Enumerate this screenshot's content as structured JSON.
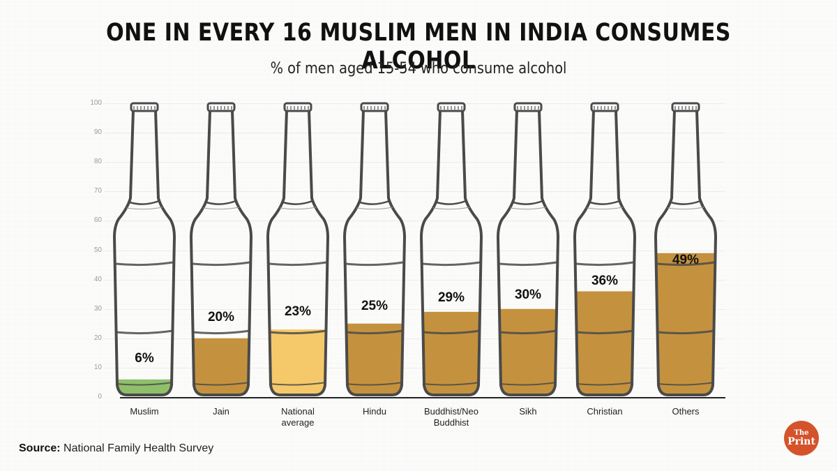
{
  "title": "ONE IN EVERY 16 MUSLIM MEN IN INDIA CONSUMES ALCOHOL",
  "subtitle": "% of men aged 15-54 who consume alcohol",
  "source_label": "Source:",
  "source_text": "National Family Health Survey",
  "logo": {
    "line1": "The",
    "line2": "Print",
    "color": "#d4532b"
  },
  "colors": {
    "muslim_fill": "#8fbf6a",
    "national_avg_fill": "#f5c96a",
    "default_fill": "#c4923e",
    "bottle_outline": "#4a4a4a"
  },
  "yticks": [
    "0",
    "10",
    "20",
    "30",
    "40",
    "50",
    "60",
    "70",
    "80",
    "90",
    "100"
  ],
  "bars": [
    {
      "label": "Muslim",
      "value_label": "6%"
    },
    {
      "label": "Jain",
      "value_label": "20%"
    },
    {
      "label": "National average",
      "value_label": "23%"
    },
    {
      "label": "Hindu",
      "value_label": "25%"
    },
    {
      "label": "Buddhist/Neo Buddhist",
      "value_label": "29%"
    },
    {
      "label": "Sikh",
      "value_label": "30%"
    },
    {
      "label": "Christian",
      "value_label": "36%"
    },
    {
      "label": "Others",
      "value_label": "49%"
    }
  ],
  "chart_data": {
    "type": "bar",
    "title": "ONE IN EVERY 16 MUSLIM MEN IN INDIA CONSUMES ALCOHOL",
    "subtitle": "% of men aged 15-54 who consume alcohol",
    "categories": [
      "Muslim",
      "Jain",
      "National average",
      "Hindu",
      "Buddhist/Neo Buddhist",
      "Sikh",
      "Christian",
      "Others"
    ],
    "values": [
      6,
      20,
      23,
      25,
      29,
      30,
      36,
      49
    ],
    "data_labels": [
      "6%",
      "20%",
      "23%",
      "25%",
      "29%",
      "30%",
      "36%",
      "49%"
    ],
    "xlabel": "",
    "ylabel": "",
    "ylim": [
      0,
      100
    ],
    "yticks": [
      0,
      10,
      20,
      30,
      40,
      50,
      60,
      70,
      80,
      90,
      100
    ],
    "grid": true,
    "legend": null,
    "style": "pictogram bars drawn as beer bottles filled to value level",
    "source": "National Family Health Survey"
  }
}
